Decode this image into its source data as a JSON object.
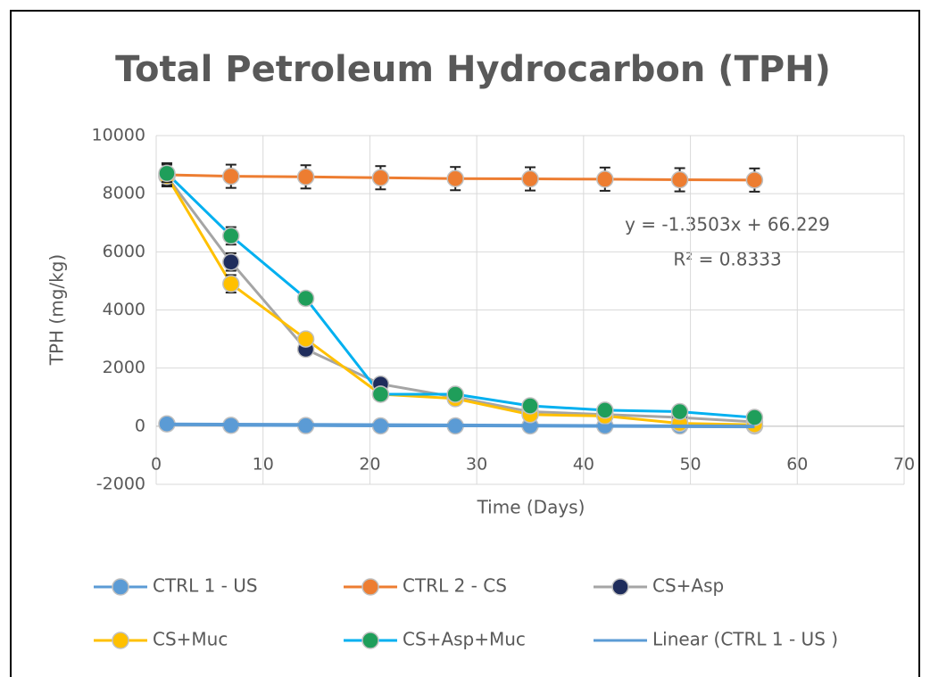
{
  "chart_data": {
    "type": "line",
    "title": "Total Petroleum Hydrocarbon (TPH)",
    "x_label": "Time (Days)",
    "y_label": "TPH (mg/kg)",
    "x": [
      1,
      7,
      14,
      21,
      28,
      35,
      42,
      49,
      56
    ],
    "xlim": [
      0,
      70
    ],
    "xticks": [
      0,
      10,
      20,
      30,
      40,
      50,
      60,
      70
    ],
    "ylim": [
      -2000,
      10000
    ],
    "yticks": [
      -2000,
      0,
      2000,
      4000,
      6000,
      8000,
      10000
    ],
    "grid": true,
    "series": [
      {
        "name": "CTRL 1 - US",
        "color": "#5b9bd5",
        "marker_color": "#5b9bd5",
        "values": [
          80,
          30,
          20,
          10,
          10,
          10,
          10,
          10,
          10
        ],
        "errors": [
          100,
          60,
          50,
          50,
          50,
          50,
          50,
          50,
          50
        ]
      },
      {
        "name": "CTRL 2 - CS",
        "color": "#ed7d31",
        "marker_color": "#ed7d31",
        "values": [
          8650,
          8600,
          8580,
          8550,
          8520,
          8510,
          8500,
          8480,
          8470
        ],
        "errors": [
          400,
          400,
          400,
          400,
          400,
          400,
          400,
          400,
          400
        ]
      },
      {
        "name": "CS+Asp",
        "color": "#a5a5a5",
        "marker_color": "#1f2d5c",
        "values": [
          8600,
          5650,
          2650,
          1450,
          1000,
          500,
          400,
          300,
          150
        ],
        "errors": [
          300,
          300,
          200,
          200,
          200,
          200,
          150,
          150,
          150
        ]
      },
      {
        "name": "CS+Muc",
        "color": "#ffc000",
        "marker_color": "#ffc000",
        "values": [
          8600,
          4900,
          3000,
          1100,
          950,
          400,
          350,
          100,
          50
        ],
        "errors": [
          300,
          300,
          200,
          200,
          200,
          200,
          150,
          150,
          150
        ]
      },
      {
        "name": "CS+Asp+Muc",
        "color": "#00b0f0",
        "marker_color": "#1f9e5a",
        "values": [
          8700,
          6550,
          4400,
          1100,
          1100,
          700,
          550,
          500,
          300
        ],
        "errors": [
          300,
          300,
          200,
          200,
          200,
          200,
          150,
          150,
          150
        ]
      }
    ],
    "trendline": {
      "name": "Linear (CTRL 1 - US )",
      "color": "#5b9bd5",
      "x": [
        1,
        56
      ],
      "values": [
        64.9,
        -9.4
      ]
    },
    "annotations": [
      "y = -1.3503x + 66.229",
      "R² = 0.8333"
    ]
  }
}
